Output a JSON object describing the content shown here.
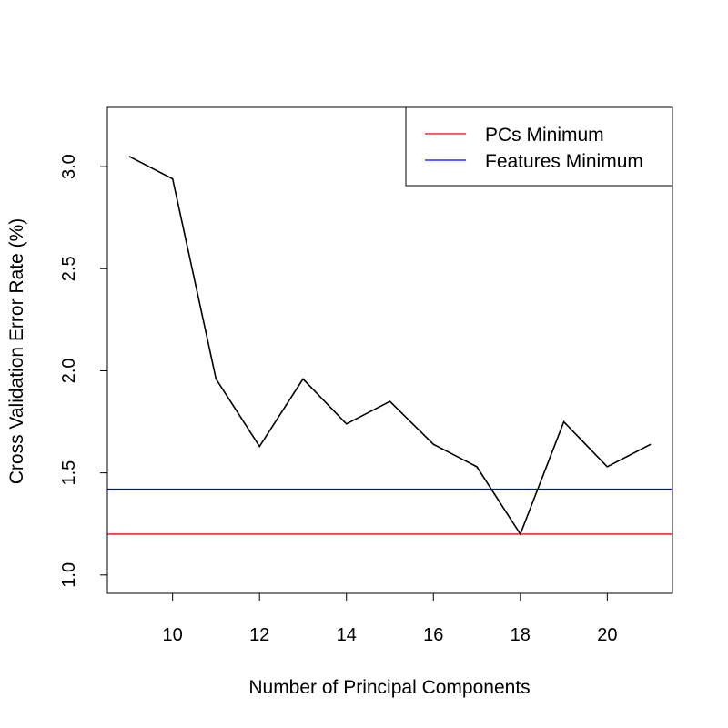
{
  "chart_data": {
    "type": "line",
    "title": "",
    "xlabel": "Number of Principal Components",
    "ylabel": "Cross Validation Error Rate (%)",
    "xlim": [
      8.5,
      21.5
    ],
    "ylim": [
      0.91,
      3.29
    ],
    "xticks": [
      10,
      12,
      14,
      16,
      18,
      20
    ],
    "yticks": [
      1.0,
      1.5,
      2.0,
      2.5,
      3.0
    ],
    "xtick_labels": [
      "10",
      "12",
      "14",
      "16",
      "18",
      "20"
    ],
    "ytick_labels": [
      "1.0",
      "1.5",
      "2.0",
      "2.5",
      "3.0"
    ],
    "grid": false,
    "legend_position": "top-right",
    "series": [
      {
        "color": "#000000",
        "x": [
          9,
          10,
          11,
          12,
          13,
          14,
          15,
          16,
          17,
          18,
          19,
          20,
          21
        ],
        "y": [
          3.05,
          2.94,
          1.96,
          1.63,
          1.96,
          1.74,
          1.85,
          1.64,
          1.53,
          1.2,
          1.75,
          1.53,
          1.64
        ]
      }
    ],
    "hlines": [
      {
        "name": "PCs Minimum",
        "y": 1.2,
        "color": "#ff0000"
      },
      {
        "name": "Features Minimum",
        "y": 1.42,
        "color": "#0000ff"
      }
    ]
  }
}
